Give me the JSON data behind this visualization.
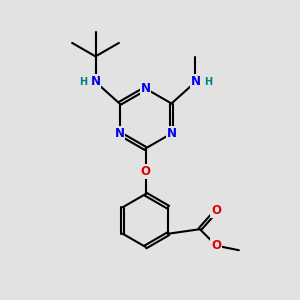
{
  "bg_color": "#e2e2e2",
  "bond_color": "#000000",
  "bond_width": 1.5,
  "atom_colors": {
    "N": "#0000ee",
    "O": "#dd0000",
    "H": "#008080",
    "C": "#000000"
  },
  "font_size_atom": 8.5,
  "font_size_small": 7.0,
  "figsize": [
    3.0,
    3.0
  ],
  "dpi": 100
}
